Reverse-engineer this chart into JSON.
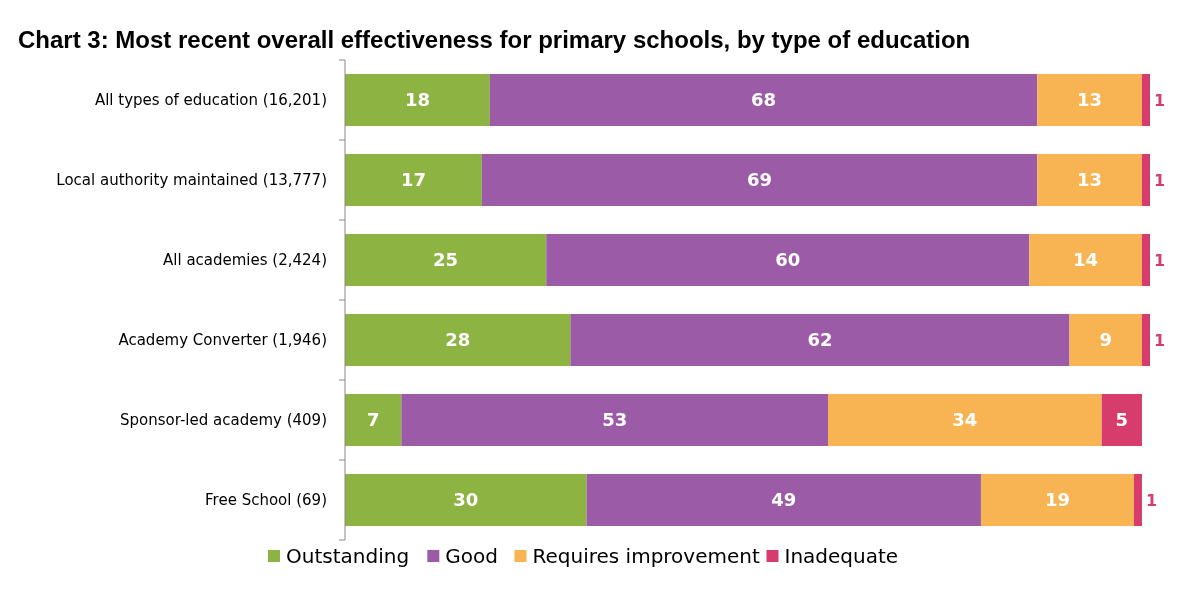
{
  "chart_data": {
    "type": "bar",
    "orientation": "horizontal",
    "stacked": true,
    "title": "Chart 3: Most recent overall effectiveness for primary schools, by type of education",
    "categories": [
      "All types of education (16,201)",
      "Local authority maintained (13,777)",
      "All academies (2,424)",
      "Academy Converter (1,946)",
      "Sponsor-led academy (409)",
      "Free School (69)"
    ],
    "series": [
      {
        "name": "Outstanding",
        "color": "#8db443",
        "values": [
          18,
          17,
          25,
          28,
          7,
          30
        ]
      },
      {
        "name": "Good",
        "color": "#9b5ba6",
        "values": [
          68,
          69,
          60,
          62,
          53,
          49
        ]
      },
      {
        "name": "Requires improvement",
        "color": "#f8b452",
        "values": [
          13,
          13,
          14,
          9,
          34,
          19
        ]
      },
      {
        "name": "Inadequate",
        "color": "#d63d6c",
        "values": [
          1,
          1,
          1,
          1,
          5,
          1
        ]
      }
    ],
    "xlim": [
      0,
      100
    ],
    "tick_labels": "y",
    "data_labels": true,
    "legend": "bottom"
  }
}
